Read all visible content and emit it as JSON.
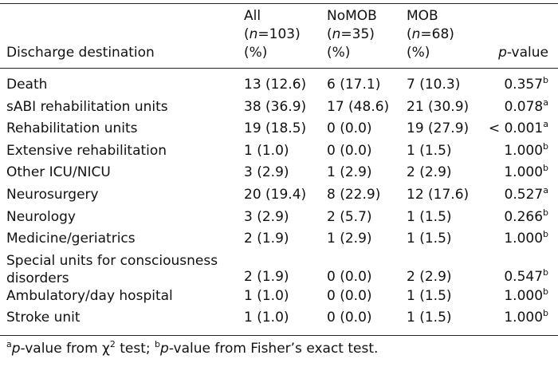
{
  "table": {
    "columns": [
      {
        "line1": "",
        "line2": "",
        "line3": "Discharge destination"
      },
      {
        "line1": "All",
        "line2_pre": "(",
        "line2_n": "n",
        "line2_post": "=103)",
        "line3": "(%)"
      },
      {
        "line1": "NoMOB",
        "line2_pre": "(",
        "line2_n": "n",
        "line2_post": "=35)",
        "line3": "(%)"
      },
      {
        "line1": "MOB",
        "line2_pre": "(",
        "line2_n": "n",
        "line2_post": "=68)",
        "line3": "(%)"
      },
      {
        "p_italic": "p",
        "p_rest": "-value"
      }
    ],
    "rows": [
      {
        "destination": "Death",
        "all": "13 (12.6)",
        "nomob": "6 (17.1)",
        "mob": "7 (10.3)",
        "p": "0.357",
        "sup": "b"
      },
      {
        "destination": "sABI rehabilitation units",
        "all": "38 (36.9)",
        "nomob": "17 (48.6)",
        "mob": "21 (30.9)",
        "p": "0.078",
        "sup": "a"
      },
      {
        "destination": "Rehabilitation units",
        "all": "19 (18.5)",
        "nomob": "0 (0.0)",
        "mob": "19 (27.9)",
        "p": "< 0.001",
        "sup": "a"
      },
      {
        "destination": "Extensive rehabilitation",
        "all": "1 (1.0)",
        "nomob": "0 (0.0)",
        "mob": "1 (1.5)",
        "p": "1.000",
        "sup": "b"
      },
      {
        "destination": "Other ICU/NICU",
        "all": "3 (2.9)",
        "nomob": "1 (2.9)",
        "mob": "2 (2.9)",
        "p": "1.000",
        "sup": "b"
      },
      {
        "destination": "Neurosurgery",
        "all": "20 (19.4)",
        "nomob": "8 (22.9)",
        "mob": "12 (17.6)",
        "p": "0.527",
        "sup": "a"
      },
      {
        "destination": "Neurology",
        "all": "3 (2.9)",
        "nomob": "2 (5.7)",
        "mob": "1 (1.5)",
        "p": "0.266",
        "sup": "b"
      },
      {
        "destination": "Medicine/geriatrics",
        "all": "2 (1.9)",
        "nomob": "1 (2.9)",
        "mob": "1 (1.5)",
        "p": "1.000",
        "sup": "b"
      },
      {
        "destination": "Special units for consciousness disorders",
        "all": "2 (1.9)",
        "nomob": "0 (0.0)",
        "mob": "2 (2.9)",
        "p": "0.547",
        "sup": "b"
      },
      {
        "destination": "Ambulatory/day hospital",
        "all": "1 (1.0)",
        "nomob": "0 (0.0)",
        "mob": "1 (1.5)",
        "p": "1.000",
        "sup": "b"
      },
      {
        "destination": "Stroke unit",
        "all": "1 (1.0)",
        "nomob": "0 (0.0)",
        "mob": "1 (1.5)",
        "p": "1.000",
        "sup": "b"
      }
    ]
  },
  "footnote": {
    "a_mark": "a",
    "a_p": "p",
    "a_text": "-value from χ",
    "a_sq": "2",
    "a_end": " test; ",
    "b_mark": "b",
    "b_p": "p",
    "b_text": "-value from Fisher’s exact test."
  }
}
